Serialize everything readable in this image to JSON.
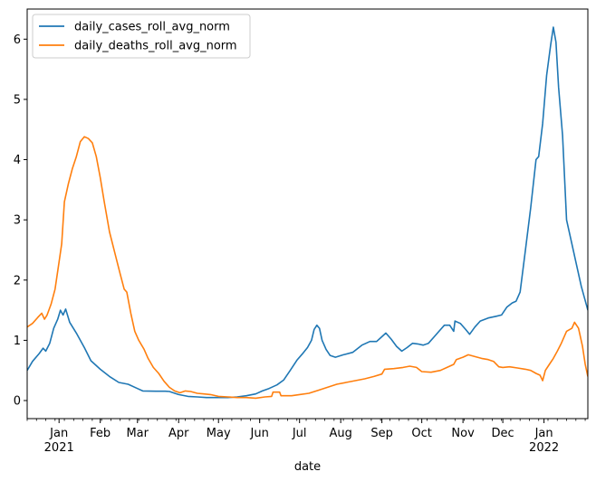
{
  "chart_data": {
    "type": "line",
    "xlabel": "date",
    "ylabel": "",
    "title": "",
    "x_range": [
      "2020-12-08",
      "2022-02-03"
    ],
    "ylim": [
      -0.3,
      6.5
    ],
    "y_ticks": [
      0,
      1,
      2,
      3,
      4,
      5,
      6
    ],
    "x_ticks": [
      {
        "date": "2021-01-01",
        "label": "Jan",
        "sublabel": "2021"
      },
      {
        "date": "2021-02-01",
        "label": "Feb",
        "sublabel": ""
      },
      {
        "date": "2021-03-01",
        "label": "Mar",
        "sublabel": ""
      },
      {
        "date": "2021-04-01",
        "label": "Apr",
        "sublabel": ""
      },
      {
        "date": "2021-05-01",
        "label": "May",
        "sublabel": ""
      },
      {
        "date": "2021-06-01",
        "label": "Jun",
        "sublabel": ""
      },
      {
        "date": "2021-07-01",
        "label": "Jul",
        "sublabel": ""
      },
      {
        "date": "2021-08-01",
        "label": "Aug",
        "sublabel": ""
      },
      {
        "date": "2021-09-01",
        "label": "Sep",
        "sublabel": ""
      },
      {
        "date": "2021-10-01",
        "label": "Oct",
        "sublabel": ""
      },
      {
        "date": "2021-11-01",
        "label": "Nov",
        "sublabel": ""
      },
      {
        "date": "2021-12-01",
        "label": "Dec",
        "sublabel": ""
      },
      {
        "date": "2022-01-01",
        "label": "Jan",
        "sublabel": "2022"
      }
    ],
    "grid": false,
    "legend_position": "upper-left",
    "series": [
      {
        "name": "daily_cases_roll_avg_norm",
        "color": "#1f77b4",
        "points": [
          [
            "2020-12-08",
            0.5
          ],
          [
            "2020-12-12",
            0.65
          ],
          [
            "2020-12-17",
            0.78
          ],
          [
            "2020-12-20",
            0.87
          ],
          [
            "2020-12-22",
            0.82
          ],
          [
            "2020-12-25",
            0.95
          ],
          [
            "2020-12-28",
            1.2
          ],
          [
            "2020-12-31",
            1.35
          ],
          [
            "2021-01-02",
            1.5
          ],
          [
            "2021-01-04",
            1.42
          ],
          [
            "2021-01-06",
            1.52
          ],
          [
            "2021-01-09",
            1.3
          ],
          [
            "2021-01-14",
            1.12
          ],
          [
            "2021-01-20",
            0.88
          ],
          [
            "2021-01-25",
            0.66
          ],
          [
            "2021-02-01",
            0.52
          ],
          [
            "2021-02-08",
            0.4
          ],
          [
            "2021-02-15",
            0.3
          ],
          [
            "2021-02-22",
            0.27
          ],
          [
            "2021-03-01",
            0.2
          ],
          [
            "2021-03-05",
            0.16
          ],
          [
            "2021-03-15",
            0.155
          ],
          [
            "2021-03-22",
            0.155
          ],
          [
            "2021-03-25",
            0.15
          ],
          [
            "2021-04-01",
            0.1
          ],
          [
            "2021-04-08",
            0.07
          ],
          [
            "2021-04-15",
            0.06
          ],
          [
            "2021-04-22",
            0.05
          ],
          [
            "2021-05-01",
            0.05
          ],
          [
            "2021-05-08",
            0.05
          ],
          [
            "2021-05-15",
            0.06
          ],
          [
            "2021-05-22",
            0.08
          ],
          [
            "2021-05-29",
            0.11
          ],
          [
            "2021-06-03",
            0.16
          ],
          [
            "2021-06-08",
            0.2
          ],
          [
            "2021-06-14",
            0.26
          ],
          [
            "2021-06-19",
            0.34
          ],
          [
            "2021-06-24",
            0.5
          ],
          [
            "2021-06-29",
            0.67
          ],
          [
            "2021-07-03",
            0.77
          ],
          [
            "2021-07-07",
            0.88
          ],
          [
            "2021-07-10",
            1.0
          ],
          [
            "2021-07-12",
            1.18
          ],
          [
            "2021-07-14",
            1.25
          ],
          [
            "2021-07-16",
            1.2
          ],
          [
            "2021-07-18",
            1.0
          ],
          [
            "2021-07-21",
            0.85
          ],
          [
            "2021-07-24",
            0.75
          ],
          [
            "2021-07-28",
            0.72
          ],
          [
            "2021-08-03",
            0.76
          ],
          [
            "2021-08-10",
            0.8
          ],
          [
            "2021-08-17",
            0.92
          ],
          [
            "2021-08-23",
            0.98
          ],
          [
            "2021-08-28",
            0.98
          ],
          [
            "2021-09-01",
            1.06
          ],
          [
            "2021-09-04",
            1.12
          ],
          [
            "2021-09-08",
            1.02
          ],
          [
            "2021-09-12",
            0.9
          ],
          [
            "2021-09-16",
            0.82
          ],
          [
            "2021-09-20",
            0.88
          ],
          [
            "2021-09-24",
            0.95
          ],
          [
            "2021-09-28",
            0.94
          ],
          [
            "2021-10-02",
            0.92
          ],
          [
            "2021-10-06",
            0.95
          ],
          [
            "2021-10-10",
            1.05
          ],
          [
            "2021-10-14",
            1.15
          ],
          [
            "2021-10-18",
            1.25
          ],
          [
            "2021-10-22",
            1.25
          ],
          [
            "2021-10-25",
            1.15
          ],
          [
            "2021-10-26",
            1.32
          ],
          [
            "2021-10-30",
            1.28
          ],
          [
            "2021-11-03",
            1.18
          ],
          [
            "2021-11-06",
            1.1
          ],
          [
            "2021-11-10",
            1.22
          ],
          [
            "2021-11-14",
            1.32
          ],
          [
            "2021-11-20",
            1.37
          ],
          [
            "2021-11-26",
            1.4
          ],
          [
            "2021-11-30",
            1.42
          ],
          [
            "2021-12-04",
            1.55
          ],
          [
            "2021-12-08",
            1.62
          ],
          [
            "2021-12-11",
            1.65
          ],
          [
            "2021-12-14",
            1.8
          ],
          [
            "2021-12-18",
            2.5
          ],
          [
            "2021-12-22",
            3.2
          ],
          [
            "2021-12-26",
            4.0
          ],
          [
            "2021-12-28",
            4.05
          ],
          [
            "2021-12-31",
            4.6
          ],
          [
            "2022-01-03",
            5.4
          ],
          [
            "2022-01-06",
            5.9
          ],
          [
            "2022-01-08",
            6.2
          ],
          [
            "2022-01-10",
            5.95
          ],
          [
            "2022-01-12",
            5.2
          ],
          [
            "2022-01-15",
            4.4
          ],
          [
            "2022-01-18",
            3.0
          ],
          [
            "2022-01-21",
            2.7
          ],
          [
            "2022-01-25",
            2.3
          ],
          [
            "2022-01-29",
            1.9
          ],
          [
            "2022-02-03",
            1.5
          ]
        ]
      },
      {
        "name": "daily_deaths_roll_avg_norm",
        "color": "#ff7f0e",
        "points": [
          [
            "2020-12-08",
            1.22
          ],
          [
            "2020-12-12",
            1.28
          ],
          [
            "2020-12-16",
            1.38
          ],
          [
            "2020-12-19",
            1.45
          ],
          [
            "2020-12-21",
            1.35
          ],
          [
            "2020-12-23",
            1.42
          ],
          [
            "2020-12-26",
            1.6
          ],
          [
            "2020-12-29",
            1.85
          ],
          [
            "2021-01-01",
            2.3
          ],
          [
            "2021-01-03",
            2.6
          ],
          [
            "2021-01-05",
            3.3
          ],
          [
            "2021-01-08",
            3.6
          ],
          [
            "2021-01-11",
            3.85
          ],
          [
            "2021-01-14",
            4.05
          ],
          [
            "2021-01-17",
            4.3
          ],
          [
            "2021-01-20",
            4.38
          ],
          [
            "2021-01-23",
            4.35
          ],
          [
            "2021-01-26",
            4.28
          ],
          [
            "2021-01-29",
            4.05
          ],
          [
            "2021-02-01",
            3.7
          ],
          [
            "2021-02-04",
            3.3
          ],
          [
            "2021-02-08",
            2.8
          ],
          [
            "2021-02-12",
            2.45
          ],
          [
            "2021-02-16",
            2.1
          ],
          [
            "2021-02-19",
            1.85
          ],
          [
            "2021-02-21",
            1.8
          ],
          [
            "2021-02-24",
            1.45
          ],
          [
            "2021-02-27",
            1.15
          ],
          [
            "2021-03-02",
            1.0
          ],
          [
            "2021-03-06",
            0.85
          ],
          [
            "2021-03-09",
            0.7
          ],
          [
            "2021-03-13",
            0.55
          ],
          [
            "2021-03-17",
            0.45
          ],
          [
            "2021-03-21",
            0.32
          ],
          [
            "2021-03-25",
            0.22
          ],
          [
            "2021-03-29",
            0.16
          ],
          [
            "2021-04-02",
            0.13
          ],
          [
            "2021-04-06",
            0.16
          ],
          [
            "2021-04-10",
            0.15
          ],
          [
            "2021-04-15",
            0.12
          ],
          [
            "2021-04-20",
            0.11
          ],
          [
            "2021-04-25",
            0.1
          ],
          [
            "2021-05-01",
            0.07
          ],
          [
            "2021-05-08",
            0.06
          ],
          [
            "2021-05-15",
            0.05
          ],
          [
            "2021-05-22",
            0.05
          ],
          [
            "2021-05-29",
            0.04
          ],
          [
            "2021-06-05",
            0.06
          ],
          [
            "2021-06-10",
            0.07
          ],
          [
            "2021-06-11",
            0.14
          ],
          [
            "2021-06-16",
            0.14
          ],
          [
            "2021-06-17",
            0.08
          ],
          [
            "2021-06-25",
            0.08
          ],
          [
            "2021-07-01",
            0.1
          ],
          [
            "2021-07-08",
            0.12
          ],
          [
            "2021-07-15",
            0.17
          ],
          [
            "2021-07-22",
            0.22
          ],
          [
            "2021-07-29",
            0.27
          ],
          [
            "2021-08-05",
            0.3
          ],
          [
            "2021-08-12",
            0.33
          ],
          [
            "2021-08-19",
            0.36
          ],
          [
            "2021-08-26",
            0.4
          ],
          [
            "2021-09-01",
            0.44
          ],
          [
            "2021-09-03",
            0.52
          ],
          [
            "2021-09-10",
            0.53
          ],
          [
            "2021-09-17",
            0.55
          ],
          [
            "2021-09-22",
            0.57
          ],
          [
            "2021-09-27",
            0.55
          ],
          [
            "2021-10-01",
            0.48
          ],
          [
            "2021-10-08",
            0.47
          ],
          [
            "2021-10-15",
            0.5
          ],
          [
            "2021-10-20",
            0.55
          ],
          [
            "2021-10-25",
            0.6
          ],
          [
            "2021-10-27",
            0.68
          ],
          [
            "2021-11-01",
            0.72
          ],
          [
            "2021-11-05",
            0.76
          ],
          [
            "2021-11-10",
            0.73
          ],
          [
            "2021-11-15",
            0.7
          ],
          [
            "2021-11-20",
            0.68
          ],
          [
            "2021-11-24",
            0.65
          ],
          [
            "2021-11-28",
            0.56
          ],
          [
            "2021-12-01",
            0.55
          ],
          [
            "2021-12-06",
            0.56
          ],
          [
            "2021-12-12",
            0.54
          ],
          [
            "2021-12-18",
            0.52
          ],
          [
            "2021-12-22",
            0.5
          ],
          [
            "2021-12-26",
            0.45
          ],
          [
            "2021-12-29",
            0.42
          ],
          [
            "2021-12-31",
            0.33
          ],
          [
            "2022-01-02",
            0.5
          ],
          [
            "2022-01-05",
            0.6
          ],
          [
            "2022-01-08",
            0.7
          ],
          [
            "2022-01-11",
            0.82
          ],
          [
            "2022-01-14",
            0.95
          ],
          [
            "2022-01-18",
            1.15
          ],
          [
            "2022-01-22",
            1.2
          ],
          [
            "2022-01-24",
            1.3
          ],
          [
            "2022-01-27",
            1.2
          ],
          [
            "2022-01-30",
            0.9
          ],
          [
            "2022-02-01",
            0.6
          ],
          [
            "2022-02-03",
            0.4
          ]
        ]
      }
    ]
  }
}
